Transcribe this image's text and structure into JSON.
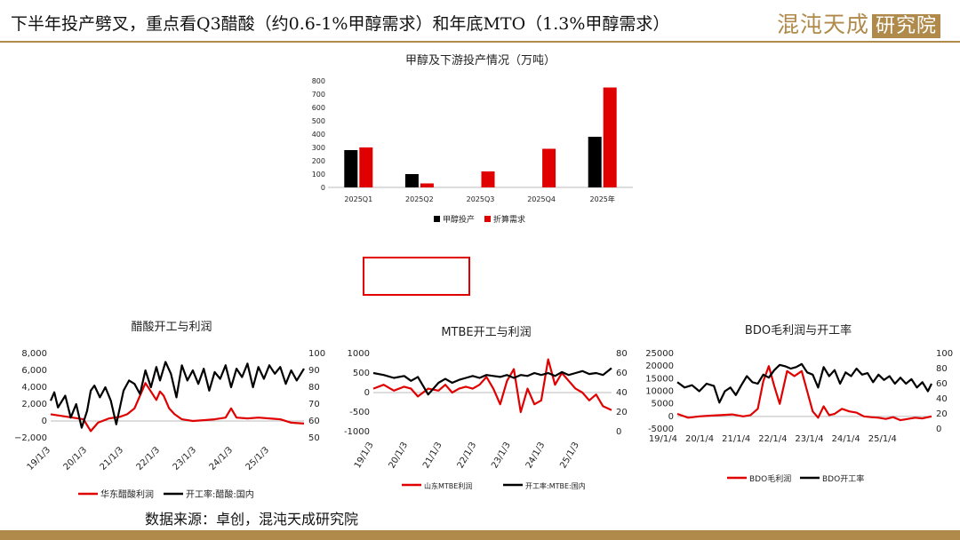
{
  "header": {
    "title": "下半年投产劈叉，重点看Q3醋酸（约0.6-1%甲醇需求）和年底MTO（1.3%甲醇需求）",
    "logo_text": "混沌天成",
    "logo_box": "研究院"
  },
  "footer": {
    "source": "数据来源：卓创，混沌天成研究院"
  },
  "colors": {
    "red": "#e00000",
    "black": "#000000",
    "gold": "#b08a4a"
  },
  "chart_data": [
    {
      "type": "bar",
      "title": "甲醇及下游投产情况（万吨）",
      "categories": [
        "2025Q1",
        "2025Q2",
        "2025Q3",
        "2025Q4",
        "2025年"
      ],
      "series": [
        {
          "name": "甲醇投产",
          "values": [
            280,
            100,
            0,
            0,
            380
          ]
        },
        {
          "name": "折算需求",
          "values": [
            300,
            30,
            120,
            290,
            750
          ]
        }
      ],
      "ylim": [
        0,
        800
      ],
      "yticks": [
        0,
        100,
        200,
        300,
        400,
        500,
        600,
        700,
        800
      ],
      "grid": false,
      "legend": "bottom"
    },
    {
      "type": "line",
      "title": "醋酸开工与利润",
      "x_ticks": [
        "19/1/3",
        "20/1/3",
        "21/1/3",
        "22/1/3",
        "23/1/3",
        "24/1/3",
        "25/1/3"
      ],
      "x_range": [
        2019.0,
        2025.95
      ],
      "y_left_ticks": [
        "−2,000",
        "0",
        "2,000",
        "4,000",
        "6,000",
        "8,000"
      ],
      "y_left_range": [
        -2000,
        8000
      ],
      "y_right_ticks": [
        "50",
        "60",
        "70",
        "80",
        "90",
        "100"
      ],
      "y_right_range": [
        50,
        100
      ],
      "legend": "bottom",
      "series": [
        {
          "name": "华东醋酸利润",
          "axis": "left",
          "x": [
            2019.0,
            2019.3,
            2019.6,
            2019.9,
            2020.1,
            2020.3,
            2020.6,
            2020.9,
            2021.1,
            2021.3,
            2021.45,
            2021.6,
            2021.75,
            2021.9,
            2022.0,
            2022.1,
            2022.25,
            2022.4,
            2022.6,
            2022.9,
            2023.2,
            2023.5,
            2023.8,
            2023.95,
            2024.1,
            2024.4,
            2024.7,
            2025.0,
            2025.3,
            2025.6,
            2025.95
          ],
          "y": [
            800,
            600,
            400,
            200,
            -1200,
            -200,
            300,
            500,
            800,
            1500,
            3000,
            4500,
            3500,
            2500,
            3500,
            3000,
            1500,
            800,
            200,
            0,
            100,
            200,
            400,
            1500,
            400,
            300,
            400,
            300,
            200,
            -200,
            -300
          ]
        },
        {
          "name": "开工率:醋酸:国内",
          "axis": "right",
          "x": [
            2019.0,
            2019.1,
            2019.2,
            2019.4,
            2019.55,
            2019.7,
            2019.85,
            2020.0,
            2020.1,
            2020.2,
            2020.35,
            2020.5,
            2020.65,
            2020.8,
            2021.0,
            2021.15,
            2021.3,
            2021.45,
            2021.6,
            2021.75,
            2021.9,
            2022.0,
            2022.15,
            2022.3,
            2022.45,
            2022.6,
            2022.75,
            2022.9,
            2023.05,
            2023.2,
            2023.35,
            2023.5,
            2023.65,
            2023.8,
            2023.95,
            2024.1,
            2024.25,
            2024.4,
            2024.55,
            2024.7,
            2024.85,
            2025.0,
            2025.15,
            2025.3,
            2025.45,
            2025.6,
            2025.75,
            2025.95
          ],
          "y": [
            72,
            77,
            68,
            75,
            62,
            70,
            56,
            66,
            78,
            81,
            74,
            80,
            72,
            58,
            78,
            84,
            82,
            76,
            90,
            80,
            92,
            84,
            95,
            88,
            74,
            93,
            84,
            90,
            82,
            91,
            78,
            89,
            85,
            93,
            80,
            91,
            86,
            94,
            80,
            92,
            85,
            93,
            88,
            92,
            82,
            90,
            84,
            91
          ]
        }
      ]
    },
    {
      "type": "line",
      "title": "MTBE开工与利润",
      "x_ticks": [
        "19/1/3",
        "20/1/3",
        "21/1/3",
        "22/1/3",
        "23/1/3",
        "24/1/3",
        "25/1/3"
      ],
      "x_range": [
        2019.0,
        2025.95
      ],
      "y_left_ticks": [
        "-1000",
        "-500",
        "0",
        "500",
        "1000"
      ],
      "y_left_range": [
        -1000,
        1000
      ],
      "y_right_ticks": [
        "0",
        "20",
        "40",
        "60",
        "80"
      ],
      "y_right_range": [
        0,
        80
      ],
      "legend": "bottom",
      "series": [
        {
          "name": "山东MTBE利润",
          "axis": "left",
          "x": [
            2019.0,
            2019.3,
            2019.6,
            2019.9,
            2020.1,
            2020.3,
            2020.6,
            2020.9,
            2021.1,
            2021.3,
            2021.5,
            2021.7,
            2021.9,
            2022.1,
            2022.3,
            2022.5,
            2022.7,
            2022.9,
            2023.1,
            2023.3,
            2023.5,
            2023.7,
            2023.9,
            2024.1,
            2024.3,
            2024.5,
            2024.7,
            2024.9,
            2025.1,
            2025.3,
            2025.5,
            2025.7,
            2025.95
          ],
          "y": [
            100,
            200,
            50,
            150,
            100,
            -100,
            100,
            50,
            200,
            0,
            100,
            150,
            100,
            200,
            400,
            100,
            -300,
            300,
            600,
            -500,
            100,
            -300,
            -200,
            850,
            200,
            500,
            300,
            100,
            0,
            -200,
            -50,
            -350,
            -450
          ]
        },
        {
          "name": "开工率:MTBE:国内",
          "axis": "right",
          "x": [
            2019.0,
            2019.3,
            2019.6,
            2019.9,
            2020.1,
            2020.3,
            2020.6,
            2020.9,
            2021.1,
            2021.3,
            2021.5,
            2021.7,
            2021.9,
            2022.1,
            2022.3,
            2022.5,
            2022.7,
            2022.9,
            2023.1,
            2023.3,
            2023.5,
            2023.7,
            2023.9,
            2024.1,
            2024.3,
            2024.5,
            2024.7,
            2024.9,
            2025.1,
            2025.3,
            2025.5,
            2025.7,
            2025.95
          ],
          "y": [
            60,
            58,
            55,
            57,
            52,
            56,
            38,
            50,
            54,
            50,
            53,
            55,
            57,
            55,
            58,
            57,
            56,
            58,
            55,
            58,
            57,
            60,
            58,
            60,
            57,
            61,
            58,
            60,
            62,
            59,
            60,
            58,
            65
          ]
        }
      ]
    },
    {
      "type": "line",
      "title": "BDO毛利润与开工率",
      "x_ticks": [
        "19/1/4",
        "20/1/4",
        "21/1/4",
        "22/1/4",
        "23/1/4",
        "24/1/4",
        "25/1/4"
      ],
      "x_range": [
        2019.0,
        2025.95
      ],
      "y_left_ticks": [
        "-5000",
        "0",
        "5000",
        "10000",
        "15000",
        "20000",
        "25000"
      ],
      "y_left_range": [
        -5000,
        25000
      ],
      "y_right_ticks": [
        "0",
        "20",
        "40",
        "60",
        "80",
        "100"
      ],
      "y_right_range": [
        0,
        100
      ],
      "legend": "bottom",
      "series": [
        {
          "name": "BDO毛利润",
          "axis": "left",
          "x": [
            2019.0,
            2019.3,
            2019.6,
            2019.9,
            2020.2,
            2020.5,
            2020.8,
            2021.0,
            2021.2,
            2021.35,
            2021.5,
            2021.65,
            2021.8,
            2022.0,
            2022.2,
            2022.4,
            2022.55,
            2022.7,
            2022.85,
            2023.0,
            2023.15,
            2023.3,
            2023.5,
            2023.7,
            2023.9,
            2024.1,
            2024.3,
            2024.5,
            2024.7,
            2024.9,
            2025.1,
            2025.3,
            2025.5,
            2025.7,
            2025.95
          ],
          "y": [
            1000,
            -500,
            0,
            300,
            500,
            800,
            0,
            500,
            3000,
            14000,
            20000,
            12000,
            5000,
            18000,
            16000,
            18000,
            10000,
            2000,
            -500,
            4000,
            500,
            1000,
            3000,
            2000,
            1500,
            0,
            -300,
            -500,
            -1000,
            -300,
            -1500,
            -1000,
            -500,
            -800,
            0
          ]
        },
        {
          "name": "BDO开工率",
          "axis": "right",
          "x": [
            2019.0,
            2019.2,
            2019.4,
            2019.6,
            2019.8,
            2020.0,
            2020.15,
            2020.3,
            2020.45,
            2020.6,
            2020.75,
            2020.9,
            2021.05,
            2021.2,
            2021.35,
            2021.5,
            2021.65,
            2021.8,
            2021.95,
            2022.1,
            2022.25,
            2022.4,
            2022.55,
            2022.7,
            2022.85,
            2023.0,
            2023.15,
            2023.3,
            2023.45,
            2023.6,
            2023.75,
            2023.9,
            2024.05,
            2024.2,
            2024.35,
            2024.5,
            2024.65,
            2024.8,
            2024.95,
            2025.1,
            2025.25,
            2025.4,
            2025.55,
            2025.7,
            2025.85,
            2025.95
          ],
          "y": [
            62,
            55,
            58,
            50,
            60,
            57,
            35,
            50,
            55,
            45,
            58,
            70,
            62,
            60,
            72,
            68,
            78,
            85,
            83,
            80,
            82,
            86,
            75,
            72,
            55,
            82,
            70,
            78,
            60,
            75,
            70,
            80,
            72,
            74,
            62,
            72,
            65,
            70,
            60,
            68,
            60,
            66,
            55,
            62,
            50,
            60
          ]
        }
      ]
    }
  ]
}
